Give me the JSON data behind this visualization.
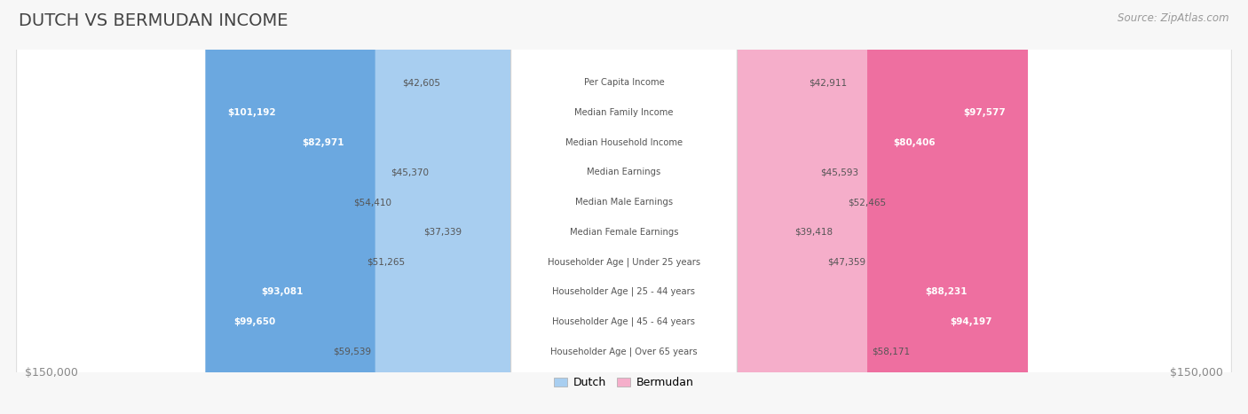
{
  "title": "DUTCH VS BERMUDAN INCOME",
  "source": "Source: ZipAtlas.com",
  "categories": [
    "Per Capita Income",
    "Median Family Income",
    "Median Household Income",
    "Median Earnings",
    "Median Male Earnings",
    "Median Female Earnings",
    "Householder Age | Under 25 years",
    "Householder Age | 25 - 44 years",
    "Householder Age | 45 - 64 years",
    "Householder Age | Over 65 years"
  ],
  "dutch_values": [
    42605,
    101192,
    82971,
    45370,
    54410,
    37339,
    51265,
    93081,
    99650,
    59539
  ],
  "bermudan_values": [
    42911,
    97577,
    80406,
    45593,
    52465,
    39418,
    47359,
    88231,
    94197,
    58171
  ],
  "dutch_color_light": "#A8CEF0",
  "dutch_color_dark": "#6BA8E0",
  "bermudan_color_light": "#F5AECA",
  "bermudan_color_dark": "#EE6FA0",
  "dutch_label": "Dutch",
  "bermudan_label": "Bermudan",
  "max_value": 150000,
  "x_axis_label_left": "$150,000",
  "x_axis_label_right": "$150,000",
  "bg_color": "#f7f7f7",
  "row_bg_color": "#ffffff",
  "title_color": "#444444",
  "source_color": "#999999",
  "value_dark_threshold": 65000,
  "inside_label_threshold": 60000
}
